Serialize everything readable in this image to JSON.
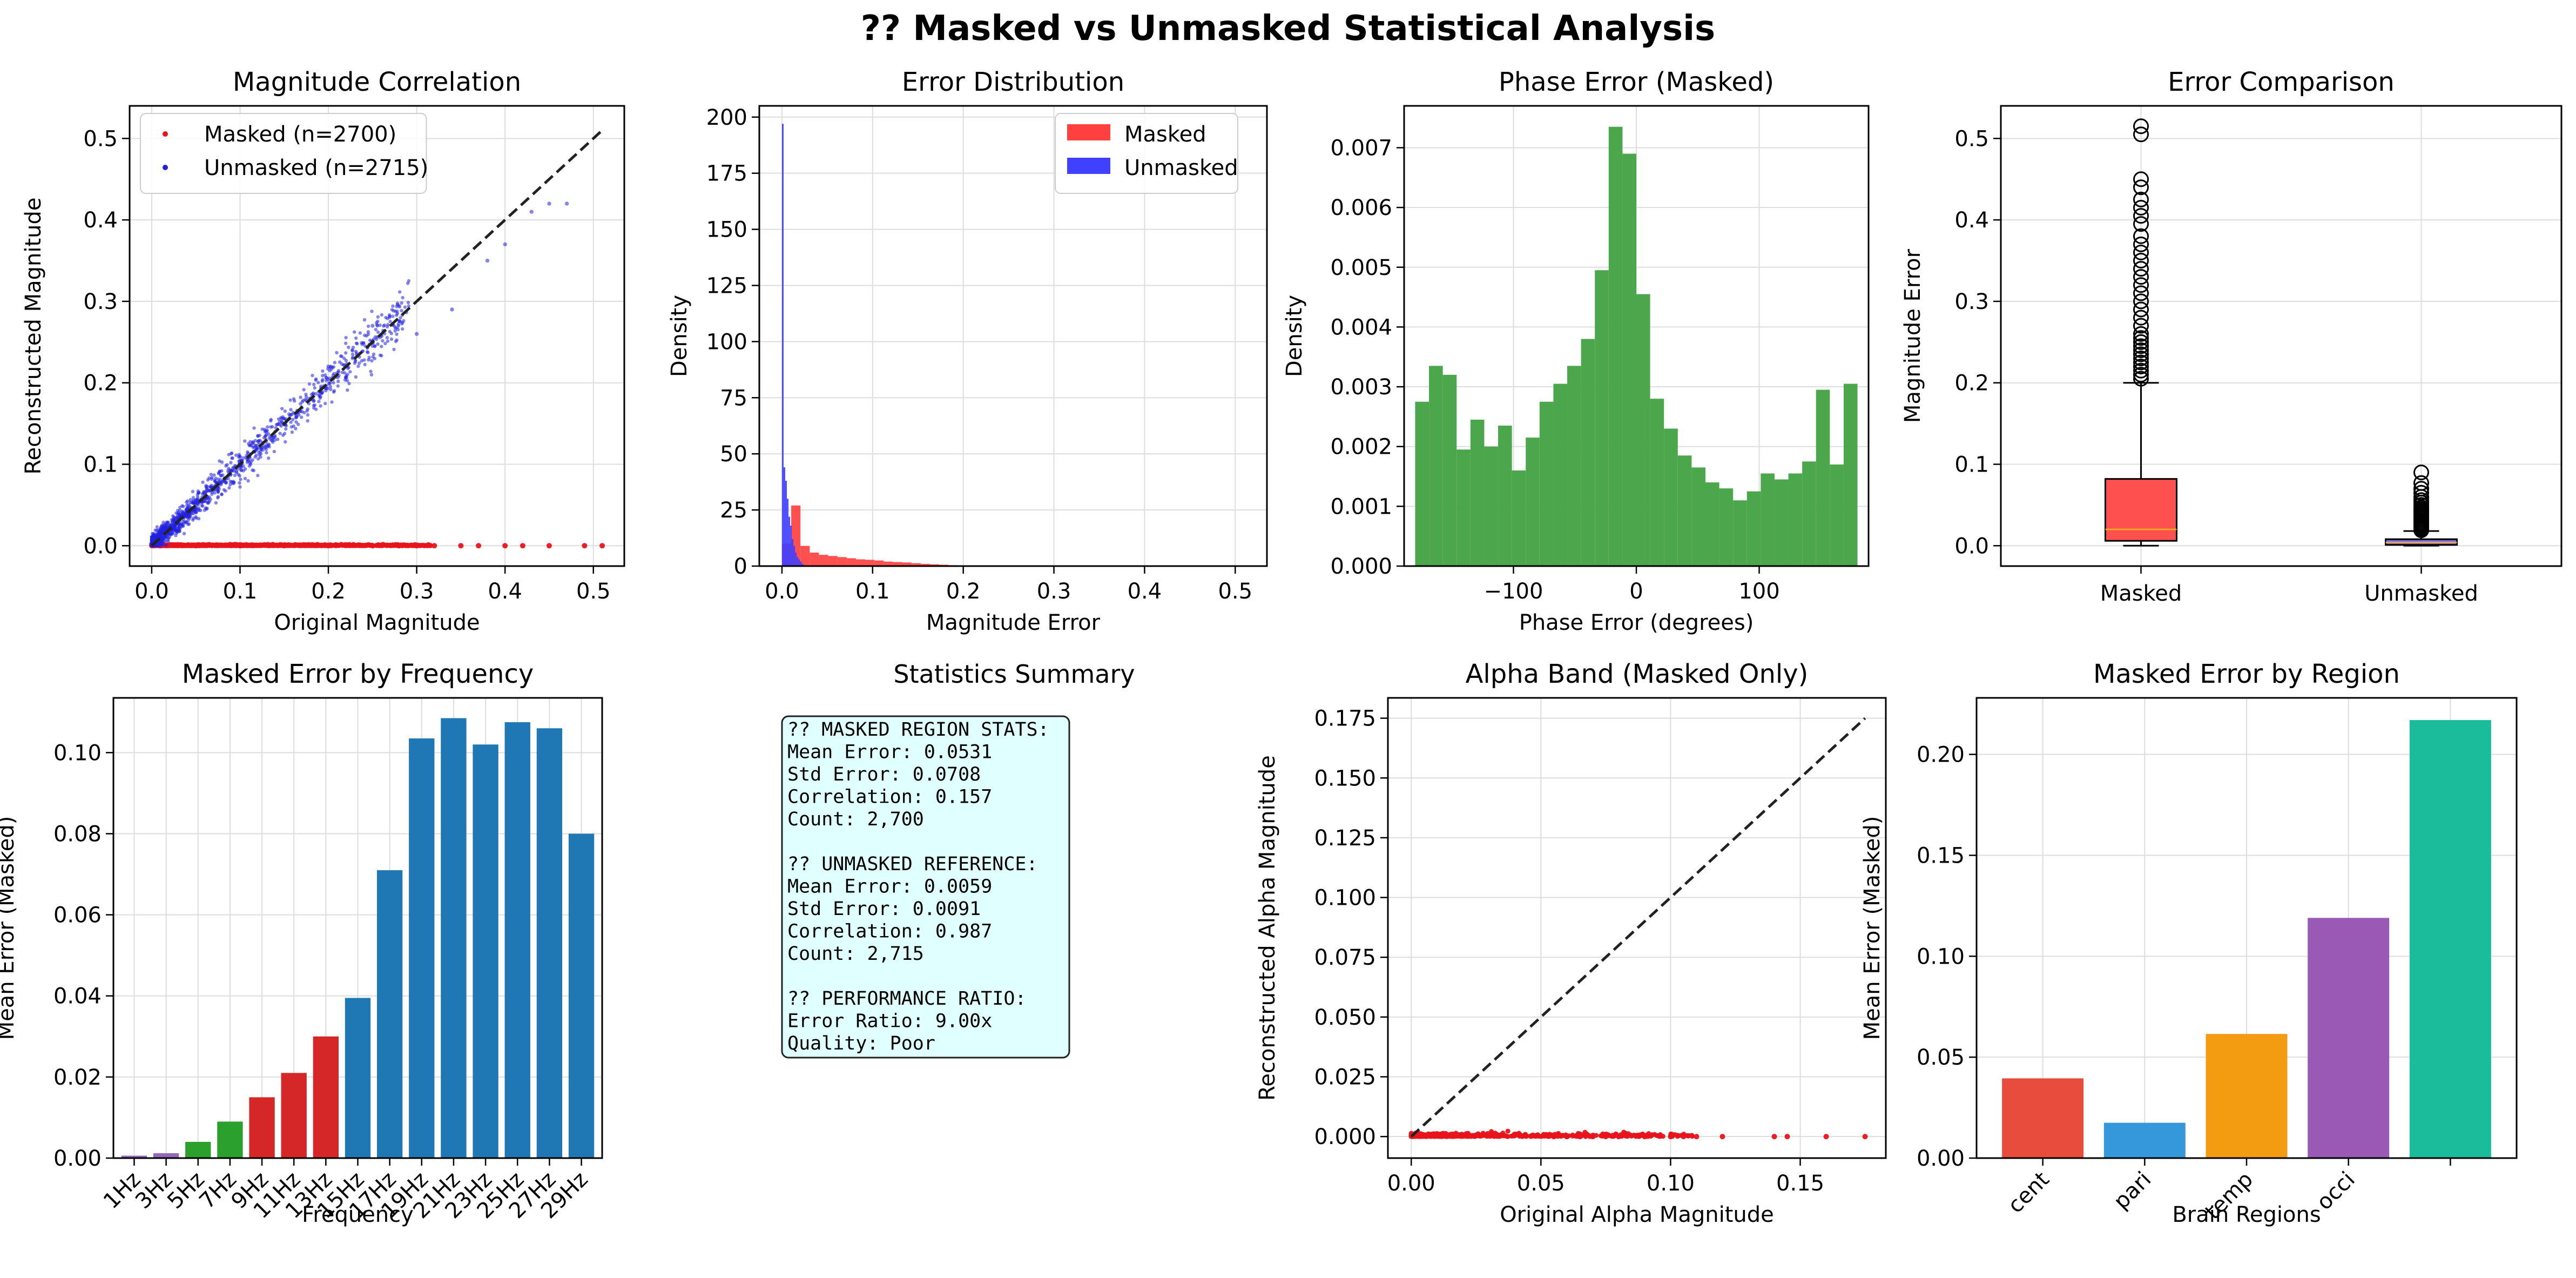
{
  "figure": {
    "suptitle": "?? Masked vs Unmasked Statistical Analysis"
  },
  "chart_data": [
    {
      "id": "p1",
      "type": "scatter",
      "title": "Magnitude Correlation",
      "xlabel": "Original Magnitude",
      "ylabel": "Reconstructed Magnitude",
      "xlim": [
        -0.025,
        0.535
      ],
      "ylim": [
        -0.025,
        0.54
      ],
      "xticks": [
        0,
        0.1,
        0.2,
        0.3,
        0.4,
        0.5
      ],
      "yticks": [
        0,
        0.1,
        0.2,
        0.3,
        0.4,
        0.5
      ],
      "grid": true,
      "legend": "top-left",
      "reference_line": {
        "x": [
          0,
          0.51
        ],
        "y": [
          0,
          0.51
        ],
        "style": "dashed",
        "color": "#222222"
      },
      "series": [
        {
          "name": "Masked (n=2700)",
          "color": "#e8141c",
          "pattern": "flat",
          "x_range": [
            0,
            0.51
          ],
          "y": 0,
          "n": 2700,
          "sample_points": [
            [
              0.01,
              0
            ],
            [
              0.05,
              0
            ],
            [
              0.1,
              0
            ],
            [
              0.15,
              0
            ],
            [
              0.2,
              0
            ],
            [
              0.25,
              0
            ],
            [
              0.28,
              0
            ],
            [
              0.3,
              0
            ],
            [
              0.32,
              0
            ],
            [
              0.35,
              0
            ],
            [
              0.37,
              0
            ],
            [
              0.4,
              0
            ],
            [
              0.42,
              0
            ],
            [
              0.45,
              0
            ],
            [
              0.49,
              0
            ],
            [
              0.51,
              0
            ]
          ]
        },
        {
          "name": "Unmasked (n=2715)",
          "color": "#2020e0",
          "pattern": "diagonal",
          "x_range": [
            0,
            0.47
          ],
          "slope": 1.0,
          "n": 2715,
          "sample_points": [
            [
              0.2,
              0.22
            ],
            [
              0.25,
              0.27
            ],
            [
              0.3,
              0.26
            ],
            [
              0.34,
              0.29
            ],
            [
              0.38,
              0.35
            ],
            [
              0.4,
              0.37
            ],
            [
              0.43,
              0.41
            ],
            [
              0.45,
              0.42
            ],
            [
              0.47,
              0.42
            ]
          ]
        }
      ]
    },
    {
      "id": "p2",
      "type": "histogram",
      "title": "Error Distribution",
      "xlabel": "Magnitude Error",
      "ylabel": "Density",
      "xlim": [
        -0.025,
        0.535
      ],
      "ylim": [
        0,
        205
      ],
      "xticks": [
        0,
        0.1,
        0.2,
        0.3,
        0.4,
        0.5
      ],
      "yticks": [
        0,
        25,
        50,
        75,
        100,
        125,
        150,
        175,
        200
      ],
      "grid": true,
      "legend": "top-right",
      "series": [
        {
          "name": "Masked",
          "color": "#ff4040",
          "bin_edges": [
            0,
            0.0102,
            0.0204,
            0.0306,
            0.0408,
            0.051,
            0.0612,
            0.0714,
            0.0816,
            0.0918,
            0.102,
            0.1122,
            0.1224,
            0.1326,
            0.1428,
            0.153,
            0.1632,
            0.1734,
            0.1836,
            0.1938,
            0.204
          ],
          "values": [
            10,
            27,
            9,
            6,
            5,
            4.5,
            4,
            3.5,
            3,
            2.8,
            2.5,
            2,
            1.8,
            1.6,
            1.3,
            1,
            0.8,
            0.6,
            0.4,
            0.3
          ]
        },
        {
          "name": "Unmasked",
          "color": "#4040ff",
          "bin_edges": [
            0,
            0.0018,
            0.0036,
            0.0054,
            0.0072,
            0.009,
            0.0108,
            0.0126,
            0.0144,
            0.0162,
            0.018,
            0.0198,
            0.0216,
            0.0234,
            0.0252,
            0.027
          ],
          "values": [
            197,
            44,
            38,
            30,
            22,
            18,
            12,
            9,
            6,
            4,
            3,
            2,
            1,
            0.5,
            0.3
          ]
        }
      ]
    },
    {
      "id": "p3",
      "type": "histogram",
      "title": "Phase Error (Masked)",
      "xlabel": "Phase Error (degrees)",
      "ylabel": "Density",
      "xlim": [
        -189,
        189
      ],
      "ylim": [
        0,
        0.0077
      ],
      "xticks": [
        -100,
        0,
        100
      ],
      "yticks": [
        0,
        0.001,
        0.002,
        0.003,
        0.004,
        0.005,
        0.006,
        0.007
      ],
      "grid": true,
      "legend": "none",
      "series": [
        {
          "name": "",
          "color": "#4ca64c",
          "bin_range": [
            -180,
            180
          ],
          "values": [
            0.00275,
            0.00335,
            0.0032,
            0.00195,
            0.00245,
            0.002,
            0.00235,
            0.0016,
            0.00215,
            0.00275,
            0.00305,
            0.00335,
            0.0038,
            0.00495,
            0.00735,
            0.0069,
            0.00455,
            0.0028,
            0.0023,
            0.00185,
            0.00165,
            0.0014,
            0.0013,
            0.0011,
            0.00125,
            0.00155,
            0.00145,
            0.00155,
            0.00175,
            0.00295,
            0.0017,
            0.00305
          ]
        }
      ]
    },
    {
      "id": "p4",
      "type": "box",
      "title": "Error Comparison",
      "xlabel": "",
      "ylabel": "Magnitude Error",
      "ylim": [
        -0.025,
        0.54
      ],
      "yticks": [
        0,
        0.1,
        0.2,
        0.3,
        0.4,
        0.5
      ],
      "grid": true,
      "legend": "none",
      "categories": [
        "Masked",
        "Unmasked"
      ],
      "boxes": [
        {
          "name": "Masked",
          "color": "#ff5050",
          "whisker_low": 0.0,
          "q1": 0.006,
          "median": 0.02,
          "q3": 0.082,
          "whisker_high": 0.2,
          "outliers": [
            0.205,
            0.21,
            0.215,
            0.22,
            0.225,
            0.23,
            0.235,
            0.24,
            0.245,
            0.25,
            0.255,
            0.26,
            0.27,
            0.28,
            0.29,
            0.3,
            0.31,
            0.32,
            0.33,
            0.34,
            0.35,
            0.36,
            0.37,
            0.38,
            0.395,
            0.405,
            0.415,
            0.425,
            0.44,
            0.45,
            0.505,
            0.515
          ]
        },
        {
          "name": "Unmasked",
          "color": "#6a6aff",
          "whisker_low": 0.0,
          "q1": 0.001,
          "median": 0.004,
          "q3": 0.008,
          "whisker_high": 0.018,
          "outliers": [
            0.019,
            0.021,
            0.023,
            0.025,
            0.027,
            0.029,
            0.031,
            0.033,
            0.035,
            0.037,
            0.039,
            0.041,
            0.043,
            0.045,
            0.047,
            0.05,
            0.053,
            0.056,
            0.06,
            0.065,
            0.07,
            0.077,
            0.09
          ]
        }
      ]
    },
    {
      "id": "p5",
      "type": "bar",
      "title": "Masked Error by Frequency",
      "xlabel": "Frequency",
      "ylabel": "Mean Error (Masked)",
      "ylim": [
        0,
        0.1135
      ],
      "yticks": [
        0,
        0.02,
        0.04,
        0.06,
        0.08,
        0.1
      ],
      "grid": true,
      "legend": "none",
      "categories": [
        "1Hz",
        "3Hz",
        "5Hz",
        "7Hz",
        "9Hz",
        "11Hz",
        "13Hz",
        "15Hz",
        "17Hz",
        "19Hz",
        "21Hz",
        "23Hz",
        "25Hz",
        "27Hz",
        "29Hz"
      ],
      "values": [
        0.0006,
        0.0012,
        0.004,
        0.009,
        0.015,
        0.021,
        0.03,
        0.0395,
        0.071,
        0.1035,
        0.1085,
        0.102,
        0.1075,
        0.106,
        0.08
      ],
      "colors": [
        "#9467bd",
        "#9467bd",
        "#2ca02c",
        "#2ca02c",
        "#d62728",
        "#d62728",
        "#d62728",
        "#1f77b4",
        "#1f77b4",
        "#1f77b4",
        "#1f77b4",
        "#1f77b4",
        "#1f77b4",
        "#1f77b4",
        "#1f77b4"
      ]
    },
    {
      "id": "p7",
      "type": "scatter",
      "title": "Alpha Band (Masked Only)",
      "xlabel": "Original Alpha Magnitude",
      "ylabel": "Reconstructed Alpha Magnitude",
      "xlim": [
        -0.009,
        0.183
      ],
      "ylim": [
        -0.009,
        0.1835
      ],
      "xticks": [
        0,
        0.05,
        0.1,
        0.15
      ],
      "yticks": [
        0,
        0.025,
        0.05,
        0.075,
        0.1,
        0.125,
        0.15,
        0.175
      ],
      "grid": true,
      "legend": "none",
      "reference_line": {
        "x": [
          0,
          0.175
        ],
        "y": [
          0,
          0.175
        ],
        "style": "dashed",
        "color": "#222222"
      },
      "series": [
        {
          "name": "",
          "color": "#e8141c",
          "pattern": "flat",
          "x_range": [
            0,
            0.175
          ],
          "y": 0,
          "n": 700,
          "sample_points": [
            [
              0.055,
              0
            ],
            [
              0.06,
              0
            ],
            [
              0.065,
              0
            ],
            [
              0.07,
              0
            ],
            [
              0.075,
              0
            ],
            [
              0.08,
              0
            ],
            [
              0.09,
              0
            ],
            [
              0.1,
              0
            ],
            [
              0.105,
              0
            ],
            [
              0.11,
              0
            ],
            [
              0.12,
              0
            ],
            [
              0.14,
              0
            ],
            [
              0.145,
              0
            ],
            [
              0.16,
              0
            ],
            [
              0.175,
              0
            ]
          ]
        }
      ]
    },
    {
      "id": "p8",
      "type": "bar",
      "title": "Masked Error by Region",
      "xlabel": "Brain Regions",
      "ylabel": "Mean Error (Masked)",
      "ylim": [
        0,
        0.228
      ],
      "yticks": [
        0,
        0.05,
        0.1,
        0.15,
        0.2
      ],
      "grid": true,
      "legend": "none",
      "categories": [
        "cent",
        "pari",
        "temp",
        "occi",
        ""
      ],
      "values": [
        0.0395,
        0.0175,
        0.0615,
        0.119,
        0.217
      ],
      "colors": [
        "#e74c3c",
        "#3498db",
        "#f39c12",
        "#9b59b6",
        "#1abc9c"
      ]
    }
  ],
  "stats_panel": {
    "title": "Statistics Summary",
    "lines": [
      "?? MASKED REGION STATS:",
      "Mean Error: 0.0531",
      "Std Error: 0.0708",
      "Correlation: 0.157",
      "Count: 2,700",
      "",
      "?? UNMASKED REFERENCE:",
      "Mean Error: 0.0059",
      "Std Error: 0.0091",
      "Correlation: 0.987",
      "Count: 2,715",
      "",
      "?? PERFORMANCE RATIO:",
      "Error Ratio: 9.00x",
      "Quality: Poor"
    ],
    "box_color": "#e0ffff"
  }
}
